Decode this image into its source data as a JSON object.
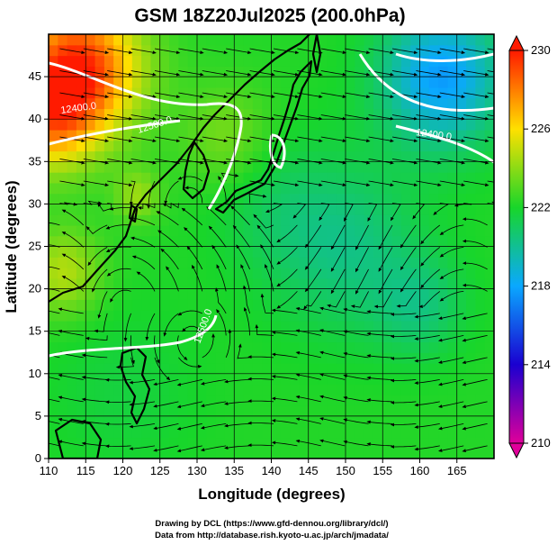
{
  "title": "GSM 18Z20Jul2025 (200.0hPa)",
  "xlabel": "Longitude (degrees)",
  "ylabel": "Latitude  (degrees)",
  "credits": [
    "Drawing by DCL (https://www.gfd-dennou.org/library/dcl/)",
    "Data from http://database.rish.kyoto-u.ac.jp/arch/jmadata/"
  ],
  "contour_labels": [
    "12400.0",
    "12500.0",
    "12400.0",
    "12500.0"
  ],
  "map": {
    "lon_range": [
      110,
      170
    ],
    "lat_range": [
      0,
      50
    ],
    "x_ticks": [
      110,
      115,
      120,
      125,
      130,
      135,
      140,
      145,
      150,
      155,
      160,
      165
    ],
    "y_ticks": [
      0,
      5,
      10,
      15,
      20,
      25,
      30,
      35,
      40,
      45
    ],
    "grid": true,
    "shaded_field": "temperature-like scalar",
    "streamlines": true,
    "height_contours": [
      12400,
      12500
    ]
  },
  "colorbar": {
    "range": [
      210,
      230
    ],
    "ticks": [
      230,
      226,
      222,
      218,
      214,
      210
    ],
    "colors": [
      "#e0009a",
      "#1a00d0",
      "#0aa8ff",
      "#18d62a",
      "#ffe000",
      "#ff1a00"
    ],
    "position": "right"
  }
}
